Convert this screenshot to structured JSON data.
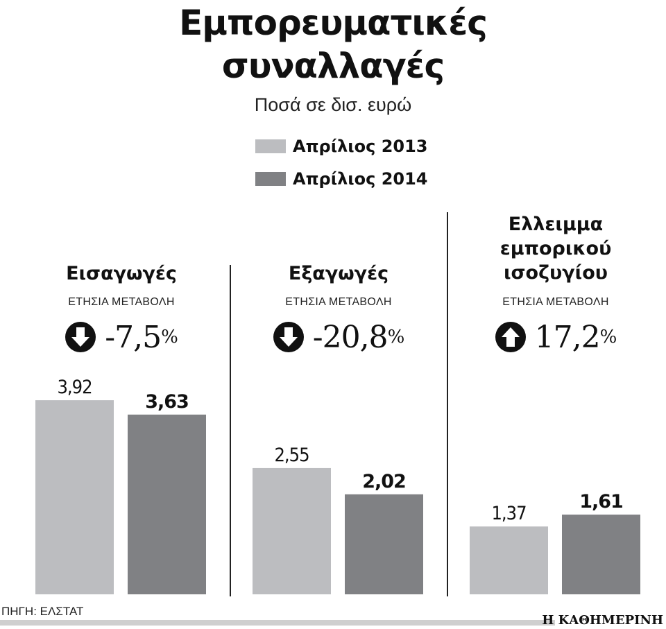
{
  "header": {
    "title_line1": "Εμπορευματικές",
    "title_line2": "συναλλαγές",
    "subtitle": "Ποσά σε δισ. ευρώ"
  },
  "legend": [
    {
      "label": "Απρίλιος 2013",
      "color": "#bcbdc0"
    },
    {
      "label": "Απρίλιος 2014",
      "color": "#808184"
    }
  ],
  "groups": [
    {
      "title_lines": [
        "Εισαγωγές"
      ],
      "change_label": "ΕΤΗΣΙΑ ΜΕΤΑΒΟΛΗ",
      "change_value": "-7,5",
      "change_unit": "%",
      "direction": "down"
    },
    {
      "title_lines": [
        "Εξαγωγές"
      ],
      "change_label": "ΕΤΗΣΙΑ ΜΕΤΑΒΟΛΗ",
      "change_value": "-20,8",
      "change_unit": "%",
      "direction": "down"
    },
    {
      "title_lines": [
        "Ελλειμμα",
        "εμπορικού",
        "ισοζυγίου"
      ],
      "change_label": "ΕΤΗΣΙΑ ΜΕΤΑΒΟΛΗ",
      "change_value": "17,2",
      "change_unit": "%",
      "direction": "up"
    }
  ],
  "chart_data": {
    "type": "bar",
    "categories": [
      "Εισαγωγές",
      "Εξαγωγές",
      "Ελλειμμα εμπορικού ισοζυγίου"
    ],
    "series": [
      {
        "name": "Απρίλιος 2013",
        "values": [
          3.92,
          2.55,
          1.37
        ],
        "labels": [
          "3,92",
          "2,55",
          "1,37"
        ],
        "color": "#bcbdc0"
      },
      {
        "name": "Απρίλιος 2014",
        "values": [
          3.63,
          2.02,
          1.61
        ],
        "labels": [
          "3,63",
          "2,02",
          "1,61"
        ],
        "color": "#808184"
      }
    ],
    "title": "Εμπορευματικές συναλλαγές",
    "subtitle": "Ποσά σε δισ. ευρώ",
    "legend_position": "top-center",
    "grid": false
  },
  "footer": {
    "source": "ΠΗΓΗ: ΕΛΣΤΑΤ",
    "brand": "Η ΚΑΘΗΜΕΡΙΝΗ"
  }
}
